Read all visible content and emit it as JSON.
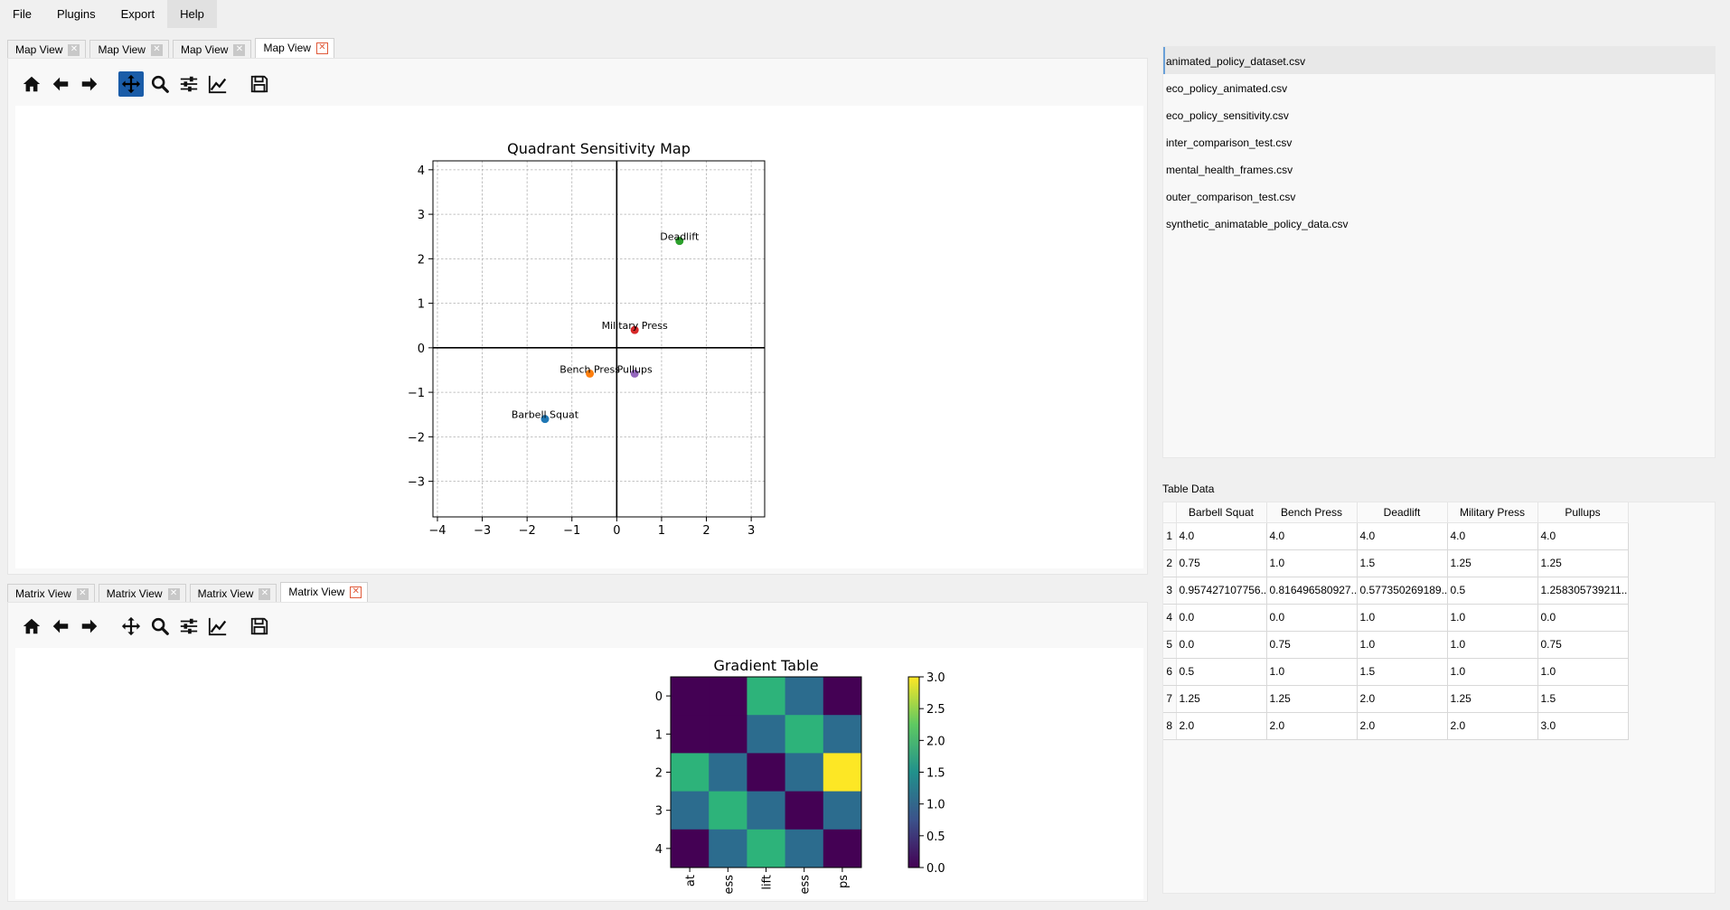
{
  "menu": [
    "File",
    "Plugins",
    "Export",
    "Help"
  ],
  "top_tabs": [
    "Map View",
    "Map View",
    "Map View",
    "Map View"
  ],
  "bottom_tabs": [
    "Matrix View",
    "Matrix View",
    "Matrix View",
    "Matrix View"
  ],
  "close_glyph": "✕",
  "toolbar_icons": [
    "home-icon",
    "back-arrow-icon",
    "forward-arrow-icon",
    "pan-icon",
    "zoom-icon",
    "configure-subplots-icon",
    "edit-axis-icon",
    "save-icon"
  ],
  "accent_color": "#1a5ca8",
  "files": [
    "animated_policy_dataset.csv",
    "eco_policy_animated.csv",
    "eco_policy_sensitivity.csv",
    "inter_comparison_test.csv",
    "mental_health_frames.csv",
    "outer_comparison_test.csv",
    "synthetic_animatable_policy_data.csv"
  ],
  "table": {
    "label": "Table Data",
    "columns": [
      "Barbell Squat",
      "Bench Press",
      "Deadlift",
      "Military Press",
      "Pullups"
    ],
    "rows": [
      [
        "1",
        "4.0",
        "4.0",
        "4.0",
        "4.0",
        "4.0"
      ],
      [
        "2",
        "0.75",
        "1.0",
        "1.5",
        "1.25",
        "1.25"
      ],
      [
        "3",
        "0.957427107756...",
        "0.816496580927...",
        "0.577350269189...",
        "0.5",
        "1.258305739211..."
      ],
      [
        "4",
        "0.0",
        "0.0",
        "1.0",
        "1.0",
        "0.0"
      ],
      [
        "5",
        "0.0",
        "0.75",
        "1.0",
        "1.0",
        "0.75"
      ],
      [
        "6",
        "0.5",
        "1.0",
        "1.5",
        "1.0",
        "1.0"
      ],
      [
        "7",
        "1.25",
        "1.25",
        "2.0",
        "1.25",
        "1.5"
      ],
      [
        "8",
        "2.0",
        "2.0",
        "2.0",
        "2.0",
        "3.0"
      ]
    ]
  },
  "chart_data": [
    {
      "type": "scatter",
      "title": "Quadrant Sensitivity Map",
      "xlabel": "",
      "ylabel": "",
      "xlim": [
        -4.1,
        3.3
      ],
      "ylim": [
        -3.8,
        4.2
      ],
      "xticks": [
        -4,
        -3,
        -2,
        -1,
        0,
        1,
        2,
        3
      ],
      "yticks": [
        -3,
        -2,
        -1,
        0,
        1,
        2,
        3,
        4
      ],
      "grid": true,
      "points": [
        {
          "label": "Barbell Squat",
          "x": -1.6,
          "y": -1.6,
          "color": "#1f77b4"
        },
        {
          "label": "Bench Press",
          "x": -0.6,
          "y": -0.58,
          "color": "#ff7f0e"
        },
        {
          "label": "Deadlift",
          "x": 1.4,
          "y": 2.4,
          "color": "#2ca02c"
        },
        {
          "label": "Military Press",
          "x": 0.4,
          "y": 0.4,
          "color": "#d62728"
        },
        {
          "label": "Pullups",
          "x": 0.4,
          "y": -0.58,
          "color": "#9467bd"
        }
      ]
    },
    {
      "type": "heatmap",
      "title": "Gradient Table",
      "y_categories": [
        "0",
        "1",
        "2",
        "3",
        "4"
      ],
      "x_categories": [
        "at",
        "ess",
        "lift",
        "ess",
        "ps"
      ],
      "values": [
        [
          0.0,
          0.0,
          2.0,
          1.0,
          0.0
        ],
        [
          0.0,
          0.0,
          1.0,
          2.0,
          1.0
        ],
        [
          2.0,
          1.0,
          0.0,
          1.0,
          3.0
        ],
        [
          1.0,
          2.0,
          1.0,
          0.0,
          1.0
        ],
        [
          0.0,
          1.0,
          2.0,
          1.0,
          0.0
        ]
      ],
      "colorbar_ticks": [
        "0.0",
        "0.5",
        "1.0",
        "1.5",
        "2.0",
        "2.5",
        "3.0"
      ],
      "vmin": 0,
      "vmax": 3,
      "colormap": "viridis"
    }
  ]
}
